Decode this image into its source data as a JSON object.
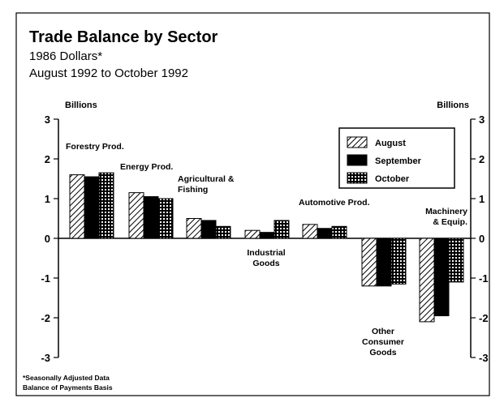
{
  "chart_data": {
    "type": "bar",
    "title": "Trade Balance by Sector",
    "subtitle": [
      "1986 Dollars*",
      "August 1992 to October 1992"
    ],
    "ylabel": "Billions",
    "y2label": "Billions",
    "footnote": [
      "*Seasonally Adjusted Data",
      "Balance of Payments Basis"
    ],
    "categories": [
      "Forestry Prod.",
      "Energy Prod.",
      "Agricultural & Fishing",
      "Industrial Goods",
      "Automotive Prod.",
      "Other Consumer Goods",
      "Machinery & Equip."
    ],
    "series": [
      {
        "name": "August",
        "color": "#000000",
        "pattern": "hatch",
        "values": [
          1.6,
          1.15,
          0.5,
          0.2,
          0.35,
          -1.2,
          -2.1
        ]
      },
      {
        "name": "September",
        "color": "#000000",
        "pattern": "solid",
        "values": [
          1.55,
          1.05,
          0.45,
          0.15,
          0.25,
          -1.2,
          -1.95
        ]
      },
      {
        "name": "October",
        "color": "#000000",
        "pattern": "grid",
        "values": [
          1.65,
          1.0,
          0.3,
          0.45,
          0.3,
          -1.15,
          -1.1
        ]
      }
    ],
    "ylim": [
      -3,
      3
    ],
    "yticks": [
      -3,
      -2,
      -1,
      0,
      1,
      2,
      3
    ],
    "y2lim": [
      -3,
      3
    ],
    "y2ticks": [
      -3,
      -2,
      -1,
      0,
      1,
      2,
      3
    ],
    "legend": "upper right"
  }
}
